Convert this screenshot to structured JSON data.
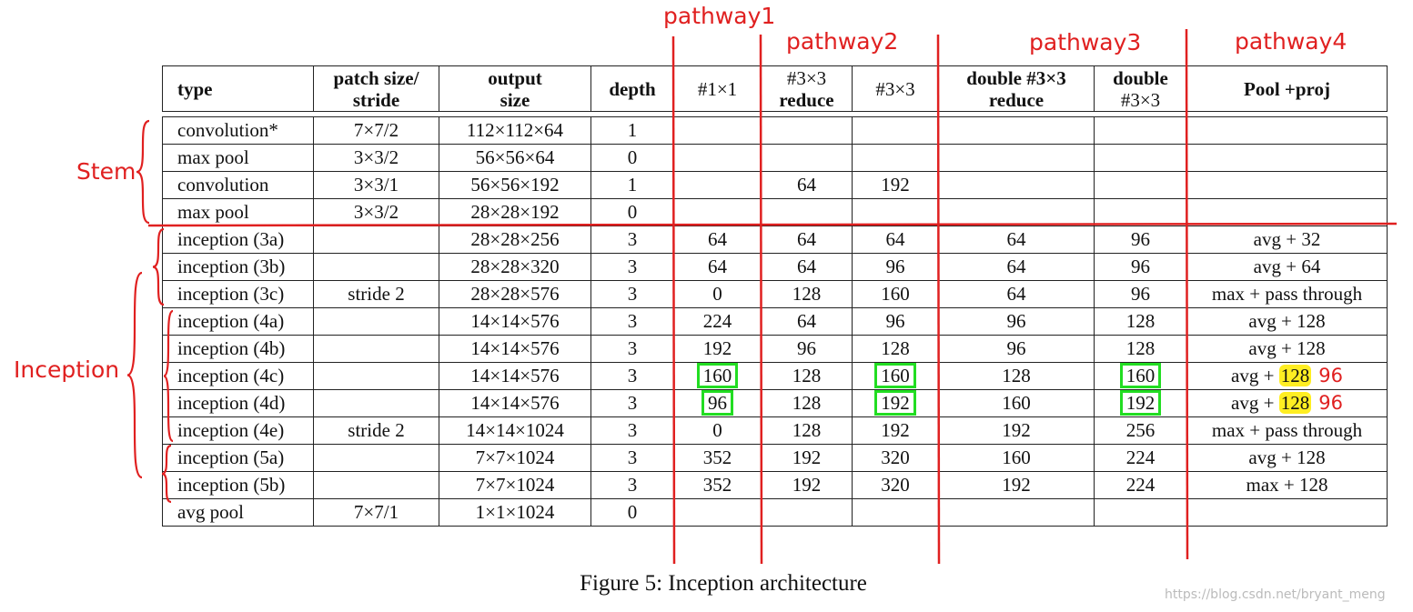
{
  "annotations": {
    "pathways": [
      "pathway1",
      "pathway2",
      "pathway3",
      "pathway4"
    ],
    "groups": [
      "Stem",
      "Inception"
    ]
  },
  "table": {
    "header": [
      [
        "type"
      ],
      [
        "patch size/",
        "stride"
      ],
      [
        "output",
        "size"
      ],
      [
        "depth"
      ],
      [
        "#1×1"
      ],
      [
        "#3×3",
        "reduce"
      ],
      [
        "#3×3"
      ],
      [
        "double #3×3",
        "reduce"
      ],
      [
        "double",
        "#3×3"
      ],
      [
        "Pool +proj"
      ]
    ],
    "rows": [
      [
        "convolution*",
        "7×7/2",
        "112×112×64",
        "1",
        null,
        null,
        null,
        null,
        null,
        null
      ],
      [
        "max pool",
        "3×3/2",
        "56×56×64",
        "0",
        null,
        null,
        null,
        null,
        null,
        null
      ],
      [
        "convolution",
        "3×3/1",
        "56×56×192",
        "1",
        null,
        "64",
        "192",
        null,
        null,
        null
      ],
      [
        "max pool",
        "3×3/2",
        "28×28×192",
        "0",
        null,
        null,
        null,
        null,
        null,
        null
      ],
      [
        "inception (3a)",
        null,
        "28×28×256",
        "3",
        "64",
        "64",
        "64",
        "64",
        "96",
        "avg + 32"
      ],
      [
        "inception (3b)",
        null,
        "28×28×320",
        "3",
        "64",
        "64",
        "96",
        "64",
        "96",
        "avg + 64"
      ],
      [
        "inception (3c)",
        "stride 2",
        "28×28×576",
        "3",
        "0",
        "128",
        "160",
        "64",
        "96",
        "max + pass through"
      ],
      [
        "inception (4a)",
        null,
        "14×14×576",
        "3",
        "224",
        "64",
        "96",
        "96",
        "128",
        "avg + 128"
      ],
      [
        "inception (4b)",
        null,
        "14×14×576",
        "3",
        "192",
        "96",
        "128",
        "96",
        "128",
        "avg + 128"
      ],
      [
        "inception (4c)",
        null,
        "14×14×576",
        "3",
        {
          "text": "160",
          "boxed": true
        },
        "128",
        {
          "text": "160",
          "boxed": true
        },
        "128",
        {
          "text": "160",
          "boxed": true
        },
        {
          "text": "avg +",
          "highlight": "128",
          "correction": "96"
        }
      ],
      [
        "inception (4d)",
        null,
        "14×14×576",
        "3",
        {
          "text": "96",
          "boxed": true
        },
        "128",
        {
          "text": "192",
          "boxed": true
        },
        "160",
        {
          "text": "192",
          "boxed": true
        },
        {
          "text": "avg +",
          "highlight": "128",
          "correction": "96"
        }
      ],
      [
        "inception (4e)",
        "stride 2",
        "14×14×1024",
        "3",
        "0",
        "128",
        "192",
        "192",
        "256",
        "max + pass through"
      ],
      [
        "inception (5a)",
        null,
        "7×7×1024",
        "3",
        "352",
        "192",
        "320",
        "160",
        "224",
        "avg + 128"
      ],
      [
        "inception (5b)",
        null,
        "7×7×1024",
        "3",
        "352",
        "192",
        "320",
        "192",
        "224",
        "max + 128"
      ],
      [
        "avg pool",
        "7×7/1",
        "1×1×1024",
        "0",
        null,
        null,
        null,
        null,
        null,
        null
      ]
    ]
  },
  "caption": "Figure 5: Inception architecture",
  "watermark": "https://blog.csdn.net/bryant_meng"
}
